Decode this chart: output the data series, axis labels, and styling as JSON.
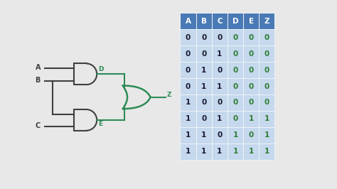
{
  "background_color": "#e8e8e8",
  "table_header": [
    "A",
    "B",
    "C",
    "D",
    "E",
    "Z"
  ],
  "table_data": [
    [
      "0",
      "0",
      "0",
      "0",
      "0",
      "0"
    ],
    [
      "0",
      "0",
      "1",
      "0",
      "0",
      "0"
    ],
    [
      "0",
      "1",
      "0",
      "0",
      "0",
      "0"
    ],
    [
      "0",
      "1",
      "1",
      "0",
      "0",
      "0"
    ],
    [
      "1",
      "0",
      "0",
      "0",
      "0",
      "0"
    ],
    [
      "1",
      "0",
      "1",
      "0",
      "1",
      "1"
    ],
    [
      "1",
      "1",
      "0",
      "1",
      "0",
      "1"
    ],
    [
      "1",
      "1",
      "1",
      "1",
      "1",
      "1"
    ]
  ],
  "header_bg": "#4a7ab5",
  "row_bg": "#c5d8ed",
  "header_text_color": "#ffffff",
  "abc_color": "#1a1a2e",
  "dez_color": "#2e7d32",
  "gate_color": "#404040",
  "wire_color": "#2e8b57",
  "label_dark": "#404040",
  "label_green": "#2e8b57"
}
